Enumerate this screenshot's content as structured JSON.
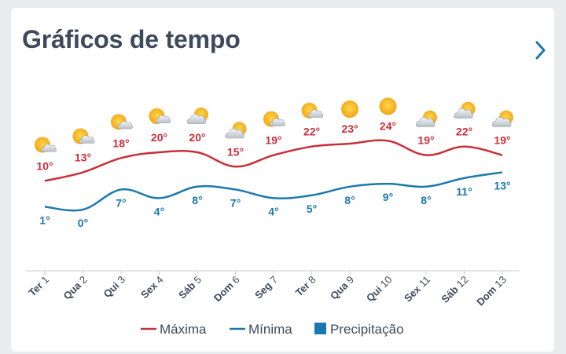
{
  "header": {
    "title": "Gráficos de tempo",
    "next_icon": "chevron-right-icon"
  },
  "colors": {
    "max": "#c8303a",
    "min": "#1a79ac",
    "precip": "#1a79ac",
    "title": "#3d4a5c",
    "axis": "#3d4a5c"
  },
  "chart_data": {
    "type": "line",
    "categories": [
      "Ter 1",
      "Qua 2",
      "Qui 3",
      "Sex 4",
      "Sáb 5",
      "Dom 6",
      "Seg 7",
      "Ter 8",
      "Qua 9",
      "Qui 10",
      "Sex 11",
      "Sáb 12",
      "Dom 13"
    ],
    "icons": [
      "sun-cloud-icon",
      "sun-cloud-icon",
      "sun-cloud-icon",
      "sun-cloud-icon",
      "cloud-sun-icon",
      "cloud-sun-icon",
      "sun-cloud-icon",
      "sun-cloud-icon",
      "sun-icon",
      "sun-icon",
      "cloud-sun-icon",
      "cloud-sun-icon",
      "cloud-sun-icon"
    ],
    "series": [
      {
        "name": "Máxima",
        "values": [
          10,
          13,
          18,
          20,
          20,
          15,
          19,
          22,
          23,
          24,
          19,
          22,
          19
        ],
        "labels": [
          "10°",
          "13°",
          "18°",
          "20°",
          "20°",
          "15°",
          "19°",
          "22°",
          "23°",
          "24°",
          "19°",
          "22°",
          "19°"
        ]
      },
      {
        "name": "Mínima",
        "values": [
          1,
          0,
          7,
          4,
          8,
          7,
          4,
          5,
          8,
          9,
          8,
          11,
          13
        ],
        "labels": [
          "1°",
          "0°",
          "7°",
          "4°",
          "8°",
          "7°",
          "4°",
          "5°",
          "8°",
          "9°",
          "8°",
          "11°",
          "13°"
        ]
      }
    ],
    "legend": [
      "Máxima",
      "Mínima",
      "Precipitação"
    ],
    "legend_position": "bottom"
  }
}
